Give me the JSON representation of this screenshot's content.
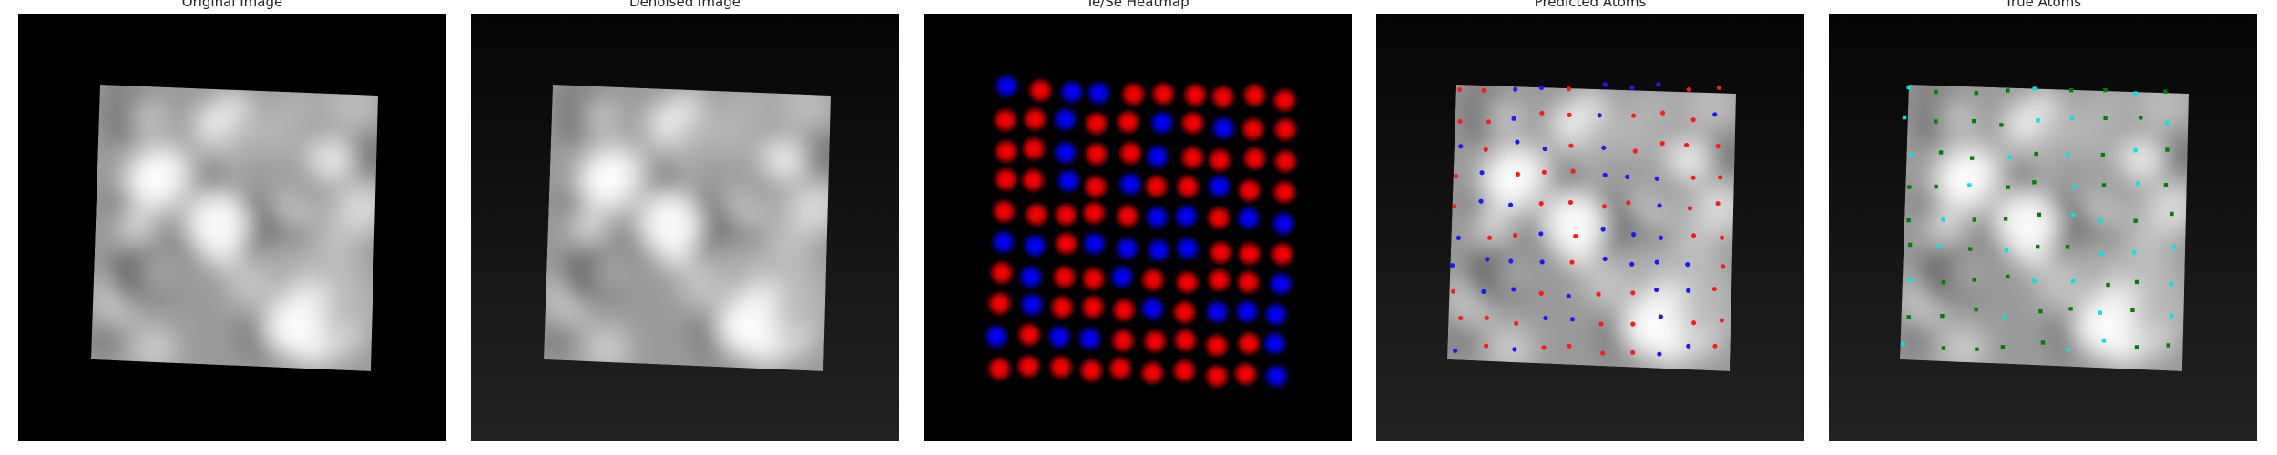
{
  "figure": {
    "panels": [
      {
        "id": "original",
        "title": "Original Image"
      },
      {
        "id": "denoised",
        "title": "Denoised Image"
      },
      {
        "id": "heatmap",
        "title": "Te/Se Heatmap"
      },
      {
        "id": "predicted",
        "title": "Predicted Atoms"
      },
      {
        "id": "true",
        "title": "True Atoms"
      }
    ]
  },
  "colors": {
    "te": "#ff0000",
    "se": "#0000ff",
    "predicted_red": "#ff1a1a",
    "predicted_blue": "#1a1aff",
    "true_cyan": "#00e5e5",
    "true_green": "#008000",
    "frame_dark": "#000000",
    "frame_gray_top": "#050505",
    "frame_gray_bottom": "#222222"
  }
}
